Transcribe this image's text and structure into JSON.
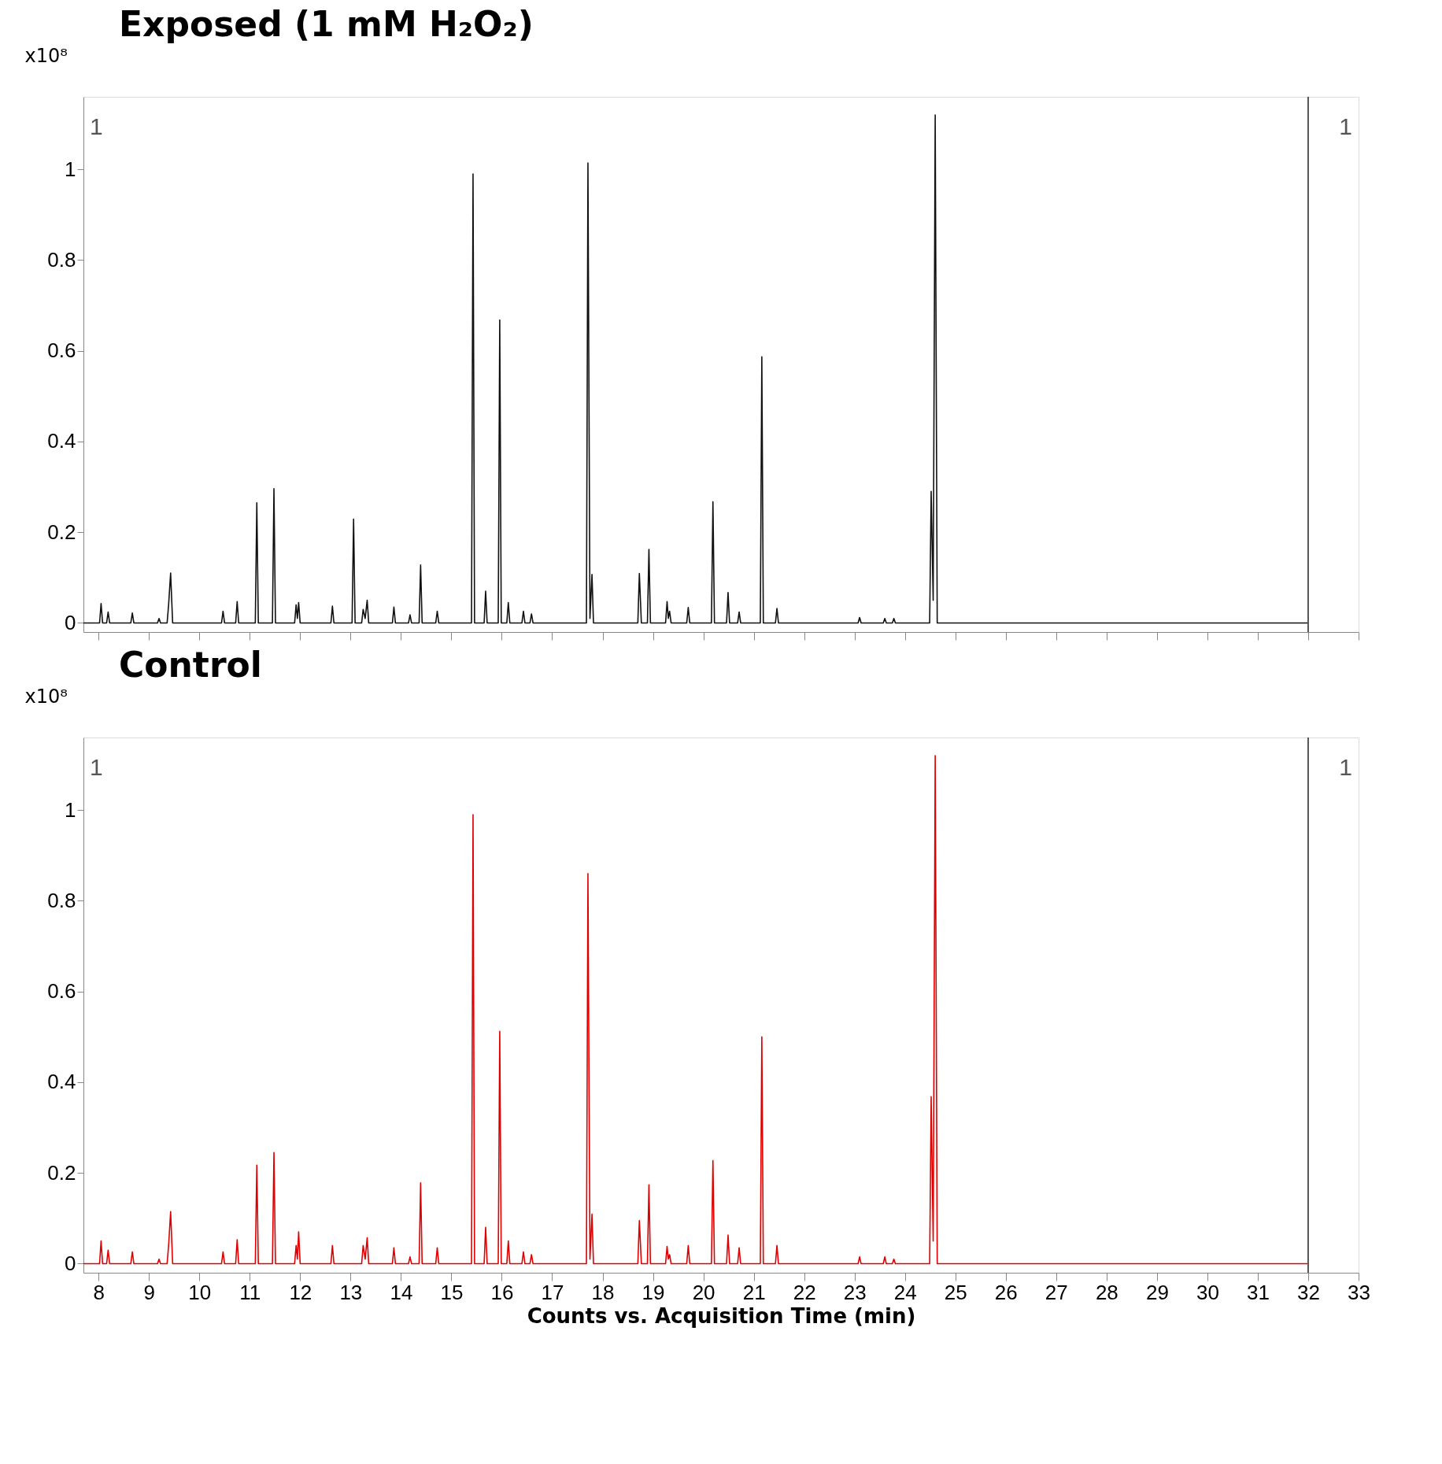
{
  "chart_data": [
    {
      "type": "line",
      "title": "Exposed (1 mM H₂O₂)",
      "ylabel": "x10⁸",
      "xlim": [
        7.7,
        33
      ],
      "xticks": [
        8,
        9,
        10,
        11,
        12,
        13,
        14,
        15,
        16,
        17,
        18,
        19,
        20,
        21,
        22,
        23,
        24,
        25,
        26,
        27,
        28,
        29,
        30,
        31,
        32,
        33
      ],
      "ylim": [
        -0.02,
        1.16
      ],
      "yticks": [
        0,
        0.2,
        0.4,
        0.6,
        0.8,
        1
      ],
      "tick_labels": "y",
      "x": [
        7.7,
        8.02,
        8.05,
        8.08,
        8.16,
        8.19,
        8.22,
        8.64,
        8.67,
        8.7,
        9.17,
        9.2,
        9.23,
        9.36,
        9.39,
        9.43,
        9.47,
        10.44,
        10.47,
        10.5,
        10.72,
        10.75,
        10.78,
        11.11,
        11.14,
        11.17,
        11.45,
        11.48,
        11.51,
        11.89,
        11.92,
        11.945,
        11.97,
        12.0,
        12.61,
        12.64,
        12.67,
        13.03,
        13.06,
        13.09,
        13.22,
        13.25,
        13.29,
        13.33,
        13.36,
        13.83,
        13.86,
        13.89,
        14.15,
        14.18,
        14.21,
        14.36,
        14.39,
        14.42,
        14.69,
        14.72,
        14.75,
        15.4,
        15.43,
        15.46,
        15.65,
        15.68,
        15.71,
        15.93,
        15.96,
        15.99,
        16.1,
        16.13,
        16.16,
        16.4,
        16.43,
        16.46,
        16.56,
        16.59,
        16.62,
        17.68,
        17.71,
        17.75,
        17.79,
        17.82,
        18.7,
        18.73,
        18.77,
        18.89,
        18.92,
        18.95,
        19.25,
        19.28,
        19.305,
        19.33,
        19.36,
        19.67,
        19.7,
        19.73,
        20.16,
        20.19,
        20.22,
        20.46,
        20.49,
        20.52,
        20.68,
        20.71,
        20.74,
        21.13,
        21.16,
        21.19,
        21.43,
        21.46,
        21.49,
        23.07,
        23.1,
        23.13,
        23.57,
        23.6,
        23.63,
        23.75,
        23.78,
        23.81,
        24.49,
        24.52,
        24.56,
        24.6,
        24.64,
        32
      ],
      "series": [
        {
          "color": "#111111",
          "values": [
            0,
            0,
            0.043,
            0,
            0,
            0.024,
            0,
            0,
            0.022,
            0,
            0,
            0.01,
            0,
            0,
            0.04,
            0.11,
            0,
            0,
            0.026,
            0,
            0,
            0.047,
            0,
            0,
            0.265,
            0,
            0,
            0.296,
            0,
            0,
            0.04,
            0.01,
            0.045,
            0,
            0,
            0.037,
            0,
            0,
            0.229,
            0,
            0,
            0.03,
            0.01,
            0.05,
            0,
            0,
            0.035,
            0,
            0,
            0.018,
            0,
            0,
            0.128,
            0,
            0,
            0.026,
            0,
            0,
            0.99,
            0,
            0,
            0.07,
            0,
            0,
            0.668,
            0,
            0,
            0.045,
            0,
            0,
            0.026,
            0,
            0,
            0.02,
            0,
            0,
            1.014,
            0.01,
            0.107,
            0,
            0,
            0.109,
            0,
            0,
            0.162,
            0,
            0,
            0.047,
            0.01,
            0.026,
            0,
            0,
            0.034,
            0,
            0,
            0.267,
            0,
            0,
            0.067,
            0,
            0,
            0.024,
            0,
            0,
            0.587,
            0,
            0,
            0.032,
            0,
            0,
            0.012,
            0,
            0,
            0.01,
            0,
            0,
            0.01,
            0,
            0,
            0.29,
            0.05,
            1.12,
            0,
            0
          ]
        }
      ],
      "ref_lines": [
        {
          "axis": "x",
          "value": 32,
          "color": "#555555"
        }
      ],
      "annotations": [
        "1",
        "1"
      ]
    },
    {
      "type": "line",
      "title": "Control",
      "ylabel": "x10⁸",
      "xlabel": "Counts vs. Acquisition Time (min)",
      "xlim": [
        7.7,
        33
      ],
      "xticks": [
        8,
        9,
        10,
        11,
        12,
        13,
        14,
        15,
        16,
        17,
        18,
        19,
        20,
        21,
        22,
        23,
        24,
        25,
        26,
        27,
        28,
        29,
        30,
        31,
        32,
        33
      ],
      "ylim": [
        -0.02,
        1.16
      ],
      "yticks": [
        0,
        0.2,
        0.4,
        0.6,
        0.8,
        1
      ],
      "x": [
        7.7,
        8.02,
        8.05,
        8.08,
        8.16,
        8.19,
        8.22,
        8.64,
        8.67,
        8.7,
        9.17,
        9.2,
        9.23,
        9.36,
        9.39,
        9.43,
        9.47,
        10.44,
        10.47,
        10.5,
        10.72,
        10.75,
        10.78,
        11.11,
        11.14,
        11.17,
        11.45,
        11.48,
        11.51,
        11.89,
        11.92,
        11.945,
        11.97,
        12.0,
        12.61,
        12.64,
        12.67,
        13.03,
        13.06,
        13.09,
        13.22,
        13.25,
        13.29,
        13.33,
        13.36,
        13.83,
        13.86,
        13.89,
        14.15,
        14.18,
        14.21,
        14.36,
        14.39,
        14.42,
        14.69,
        14.72,
        14.75,
        15.4,
        15.43,
        15.46,
        15.65,
        15.68,
        15.71,
        15.93,
        15.96,
        15.99,
        16.1,
        16.13,
        16.16,
        16.4,
        16.43,
        16.46,
        16.56,
        16.59,
        16.62,
        17.68,
        17.71,
        17.75,
        17.79,
        17.82,
        18.7,
        18.73,
        18.77,
        18.89,
        18.92,
        18.95,
        19.25,
        19.28,
        19.305,
        19.33,
        19.36,
        19.67,
        19.7,
        19.73,
        20.16,
        20.19,
        20.22,
        20.46,
        20.49,
        20.52,
        20.68,
        20.71,
        20.74,
        21.13,
        21.16,
        21.19,
        21.43,
        21.46,
        21.49,
        23.07,
        23.1,
        23.13,
        23.57,
        23.6,
        23.63,
        23.75,
        23.78,
        23.81,
        24.49,
        24.52,
        24.56,
        24.6,
        24.64,
        32
      ],
      "series": [
        {
          "color": "#e00000",
          "values": [
            0,
            0,
            0.05,
            0,
            0,
            0.03,
            0,
            0,
            0.026,
            0,
            0,
            0.01,
            0,
            0,
            0.04,
            0.115,
            0,
            0,
            0.026,
            0,
            0,
            0.053,
            0,
            0,
            0.217,
            0,
            0,
            0.245,
            0,
            0,
            0.04,
            0.01,
            0.07,
            0,
            0,
            0.04,
            0,
            0,
            0,
            0,
            0,
            0.04,
            0.01,
            0.057,
            0,
            0,
            0.035,
            0,
            0,
            0.015,
            0,
            0,
            0.178,
            0,
            0,
            0.035,
            0,
            0,
            0.99,
            0,
            0,
            0.08,
            0,
            0,
            0.512,
            0,
            0,
            0.05,
            0,
            0,
            0.026,
            0,
            0,
            0.02,
            0,
            0,
            0.86,
            0.01,
            0.109,
            0,
            0,
            0.095,
            0,
            0,
            0.174,
            0,
            0,
            0.038,
            0.01,
            0.02,
            0,
            0,
            0.04,
            0,
            0,
            0.227,
            0,
            0,
            0.063,
            0,
            0,
            0.035,
            0,
            0,
            0.5,
            0,
            0,
            0.04,
            0,
            0,
            0.015,
            0,
            0,
            0.015,
            0,
            0,
            0.01,
            0,
            0,
            0.368,
            0.05,
            1.12,
            0,
            0
          ]
        }
      ],
      "ref_lines": [
        {
          "axis": "x",
          "value": 32,
          "color": "#555555"
        }
      ],
      "annotations": [
        "1",
        "1"
      ]
    }
  ]
}
